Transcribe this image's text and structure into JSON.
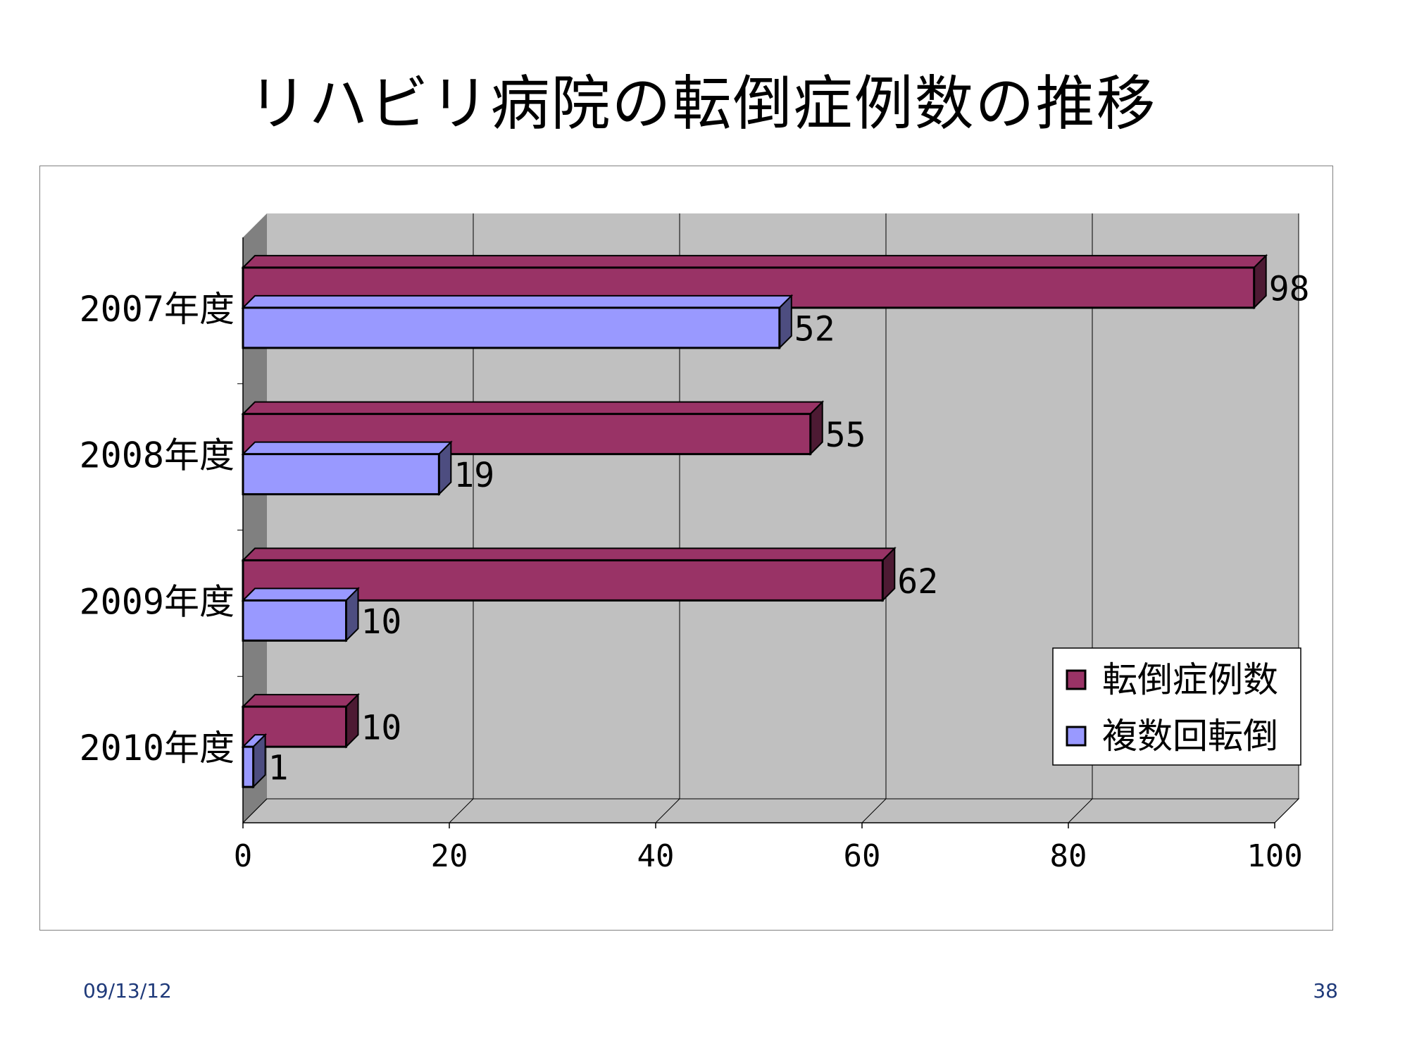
{
  "slide": {
    "title": "リハビリ病院の転倒症例数の推移",
    "footer_date": "09/13/12",
    "page_number": "38"
  },
  "chart_data": {
    "type": "bar",
    "orientation": "horizontal",
    "style": "3d-clustered",
    "categories": [
      "2007年度",
      "2008年度",
      "2009年度",
      "2010年度"
    ],
    "series": [
      {
        "name": "転倒症例数",
        "values": [
          98,
          55,
          62,
          10
        ],
        "color": "#993366",
        "dark_color": "#4d1a33"
      },
      {
        "name": "複数回転倒",
        "values": [
          52,
          19,
          10,
          1
        ],
        "color": "#9999ff",
        "dark_color": "#4d4d80"
      }
    ],
    "xlim": [
      0,
      100
    ],
    "x_ticks": [
      "0",
      "20",
      "40",
      "60",
      "80",
      "100"
    ],
    "data_labels": true,
    "grid": true,
    "legend_position": "bottom-right",
    "wall_color": "#c0c0c0",
    "side_wall_color": "#808080"
  }
}
